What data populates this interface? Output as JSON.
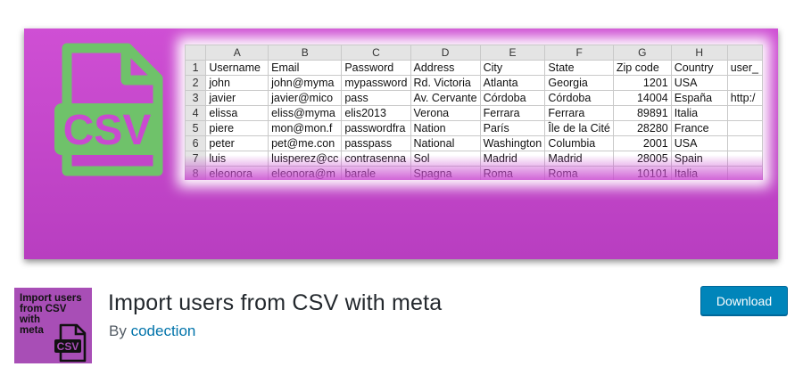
{
  "banner": {
    "logo_text": "CSV",
    "spreadsheet": {
      "columns": [
        "A",
        "B",
        "C",
        "D",
        "E",
        "F",
        "G",
        "H",
        ""
      ],
      "rows": [
        {
          "n": "1",
          "cells": [
            "Username",
            "Email",
            "Password",
            "Address",
            "City",
            "State",
            "Zip code",
            "Country",
            "user_"
          ]
        },
        {
          "n": "2",
          "cells": [
            "john",
            "john@myma",
            "mypassword",
            "Rd. Victoria",
            "Atlanta",
            "Georgia",
            "1201",
            "USA",
            ""
          ]
        },
        {
          "n": "3",
          "cells": [
            "javier",
            "javier@mico",
            "pass",
            "Av. Cervante",
            "Córdoba",
            "Córdoba",
            "14004",
            "España",
            "http:/"
          ]
        },
        {
          "n": "4",
          "cells": [
            "elissa",
            "eliss@myma",
            "elis2013",
            "Verona",
            "Ferrara",
            "Ferrara",
            "89891",
            "Italia",
            ""
          ]
        },
        {
          "n": "5",
          "cells": [
            "piere",
            "mon@mon.f",
            "passwordfra",
            "Nation",
            "París",
            "Île de la Cité",
            "28280",
            "France",
            ""
          ]
        },
        {
          "n": "6",
          "cells": [
            "peter",
            "pet@me.con",
            "passpass",
            "National",
            "Washington",
            "Columbia",
            "2001",
            "USA",
            ""
          ]
        },
        {
          "n": "7",
          "cells": [
            "luis",
            "luisperez@cc",
            "contrasenna",
            "Sol",
            "Madrid",
            "Madrid",
            "28005",
            "Spain",
            ""
          ]
        },
        {
          "n": "8",
          "cells": [
            "eleonora",
            "eleonora@m",
            "barale",
            "Spagna",
            "Roma",
            "Roma",
            "10101",
            "Italia",
            ""
          ]
        }
      ]
    }
  },
  "plugin": {
    "thumb_lines": [
      "Import users",
      "from CSV",
      "with",
      "meta"
    ],
    "thumb_icon_text": "CSV",
    "title": "Import users from CSV with meta",
    "by": "By",
    "author": "codection",
    "download_label": "Download"
  },
  "colors": {
    "banner": "#c94ad0",
    "logo_green": "#6fc26a",
    "link": "#0073aa",
    "button": "#0085ba"
  }
}
